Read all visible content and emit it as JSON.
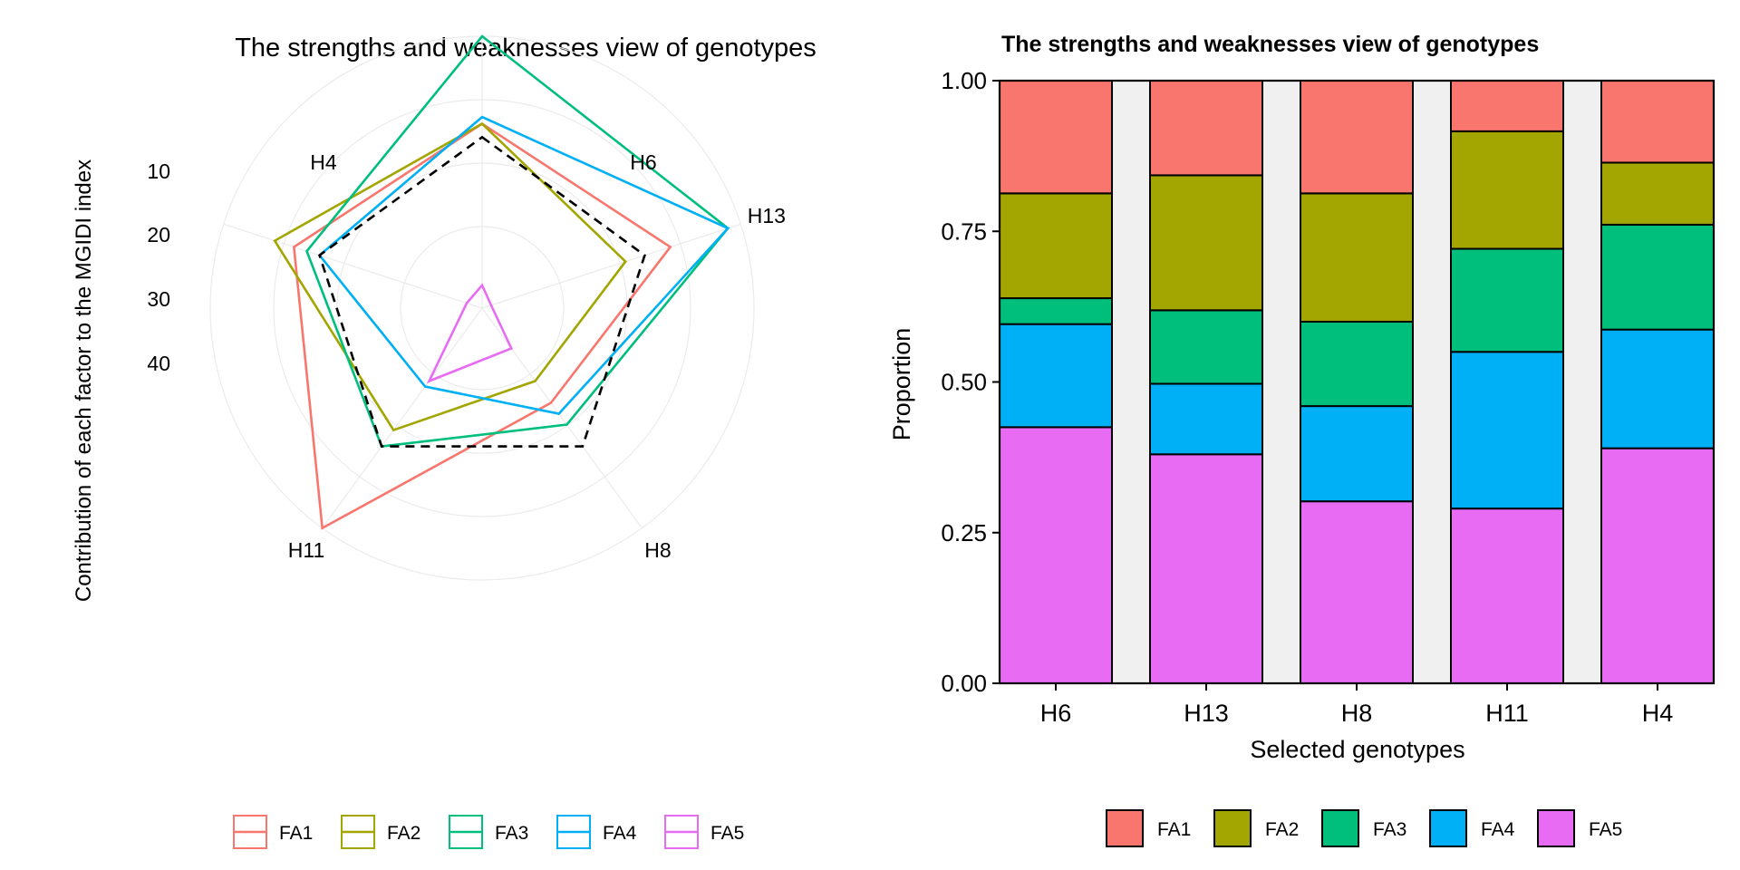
{
  "colors": {
    "FA1": "#F8766D",
    "FA2": "#A3A500",
    "FA3": "#00BF7D",
    "FA4": "#00B0F6",
    "FA5": "#E76BF3",
    "gap": "#F0F0F0",
    "grid": "#EBEBEB"
  },
  "chart_data": [
    {
      "type": "radar",
      "title": "The strengths and weaknesses view of genotypes",
      "ylabel": "Contribution of each factor to the MGIDI index",
      "scale": "reversed",
      "radial_ticks": [
        "10",
        "20",
        "30",
        "40"
      ],
      "rlim": [
        10,
        50
      ],
      "categories": [
        "H6",
        "H13",
        "H8",
        "H11",
        "H4"
      ],
      "series": [
        {
          "name": "FA1",
          "values": [
            23,
            21,
            33,
            10,
            21
          ]
        },
        {
          "name": "FA2",
          "values": [
            23,
            28,
            37,
            28,
            18
          ]
        },
        {
          "name": "FA3",
          "values": [
            10,
            12,
            29,
            25,
            23
          ]
        },
        {
          "name": "FA4",
          "values": [
            22,
            12,
            31,
            36,
            25
          ]
        },
        {
          "name": "FA5",
          "values": [
            47,
            49,
            43,
            37,
            48
          ]
        }
      ],
      "reference_line": {
        "style": "dashed",
        "value": 25
      },
      "legend": [
        "FA1",
        "FA2",
        "FA3",
        "FA4",
        "FA5"
      ],
      "legend_position": "bottom",
      "grid": true
    },
    {
      "type": "bar",
      "stacked": true,
      "title": "The strengths and weaknesses view of genotypes",
      "xlabel": "Selected genotypes",
      "ylabel": "Proportion",
      "ylim": [
        0,
        1
      ],
      "yticks": [
        "0.00",
        "0.25",
        "0.50",
        "0.75",
        "1.00"
      ],
      "categories": [
        "H6",
        "H13",
        "H8",
        "H11",
        "H4"
      ],
      "series": [
        {
          "name": "FA5",
          "values": [
            0.425,
            0.38,
            0.302,
            0.29,
            0.39
          ]
        },
        {
          "name": "FA4",
          "values": [
            0.171,
            0.117,
            0.158,
            0.26,
            0.197
          ]
        },
        {
          "name": "FA3",
          "values": [
            0.043,
            0.122,
            0.14,
            0.171,
            0.174
          ]
        },
        {
          "name": "FA2",
          "values": [
            0.174,
            0.224,
            0.213,
            0.195,
            0.103
          ]
        },
        {
          "name": "FA1",
          "values": [
            0.187,
            0.157,
            0.187,
            0.084,
            0.136
          ]
        }
      ],
      "legend": [
        "FA1",
        "FA2",
        "FA3",
        "FA4",
        "FA5"
      ],
      "legend_position": "bottom",
      "grid": false
    }
  ]
}
